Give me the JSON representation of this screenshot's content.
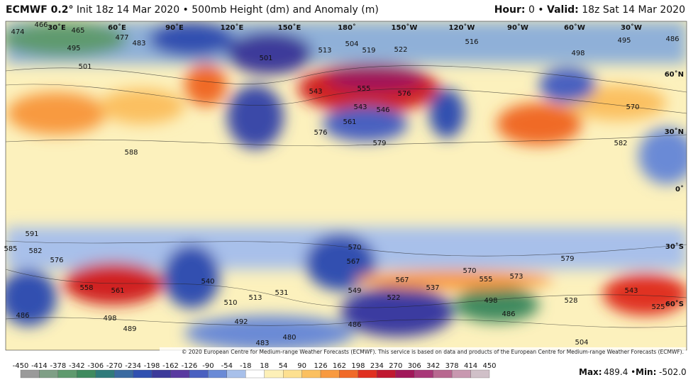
{
  "header": {
    "model": "ECMWF 0.2°",
    "title": "Init 18z 14 Mar 2020 • 500mb Height (dm) and Anomaly (m)",
    "hour_label": "Hour:",
    "hour": "0 •",
    "valid_label": "Valid:",
    "valid": "18z Sat 14 Mar 2020"
  },
  "map": {
    "lon_labels": [
      "30˚E",
      "60˚E",
      "90˚E",
      "120˚E",
      "150˚E",
      "180˚",
      "150˚W",
      "120˚W",
      "90˚W",
      "60˚W",
      "30˚W"
    ],
    "lat_labels": [
      "60˚N",
      "30˚N",
      "0˚",
      "30˚S",
      "60˚S"
    ],
    "contour_labels": [
      474,
      466,
      465,
      477,
      483,
      495,
      501,
      501,
      504,
      513,
      519,
      522,
      516,
      498,
      495,
      486,
      543,
      555,
      576,
      543,
      546,
      561,
      576,
      579,
      570,
      582,
      588,
      591,
      585,
      582,
      576,
      558,
      561,
      570,
      567,
      567,
      570,
      573,
      579,
      555,
      537,
      549,
      531,
      522,
      513,
      510,
      498,
      486,
      498,
      492,
      489,
      486,
      480,
      483,
      486,
      528,
      543,
      525,
      504,
      540
    ],
    "credit": "© 2020 European Centre for Medium-range Weather Forecasts (ECMWF). This service is based on data and products of the European Centre for Medium-range Weather Forecasts (ECMWF)."
  },
  "colorbar": {
    "ticks": [
      -450,
      -414,
      -378,
      -342,
      -306,
      -270,
      -234,
      -198,
      -162,
      -126,
      -90,
      -54,
      -18,
      18,
      54,
      90,
      126,
      162,
      198,
      234,
      270,
      306,
      342,
      378,
      414,
      450
    ],
    "colors": [
      "#9a9a9a",
      "#7f9f86",
      "#5f9a6e",
      "#3f8a5e",
      "#2f7a7a",
      "#3a6aa0",
      "#3050b0",
      "#3c3a9a",
      "#5a3aa0",
      "#4a60c0",
      "#6a8ad6",
      "#a8c0ea",
      "#ffffff",
      "#fdf0b8",
      "#fde090",
      "#fbc060",
      "#f89a40",
      "#f06a28",
      "#e03020",
      "#c01830",
      "#a0185a",
      "#a83878",
      "#b86890",
      "#c898b0",
      "#d0c0c8"
    ]
  },
  "stats": {
    "max_label": "Max:",
    "max": "489.4 •",
    "min_label": "Min:",
    "min": "-502.0"
  }
}
